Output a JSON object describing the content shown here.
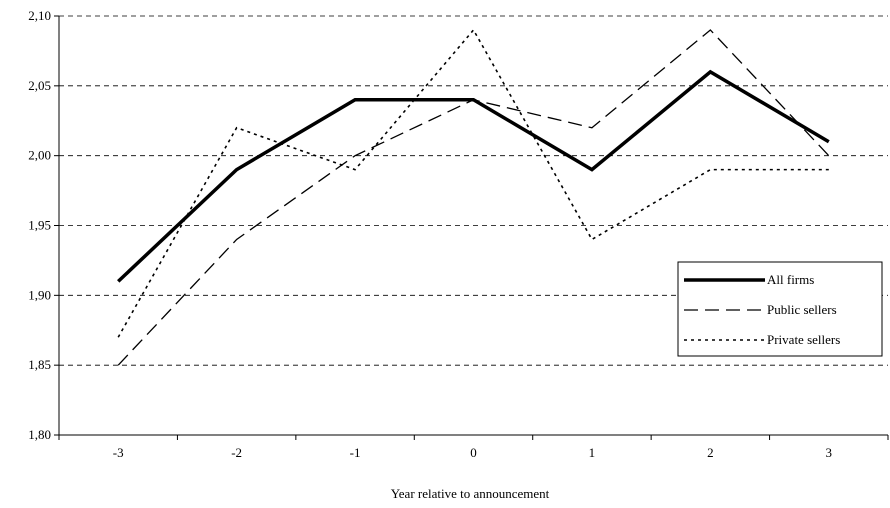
{
  "chart_data": {
    "type": "line",
    "title": "",
    "xlabel": "Year relative to announcement",
    "ylabel": "",
    "categories": [
      "-3",
      "-2",
      "-1",
      "0",
      "1",
      "2",
      "3"
    ],
    "ylim": [
      1.8,
      2.1
    ],
    "y_ticks": [
      "1,80",
      "1,85",
      "1,90",
      "1,95",
      "2,00",
      "2,05",
      "2,10"
    ],
    "grid": "horizontal dashed",
    "legend_position": "right",
    "series": [
      {
        "name": "All firms",
        "style": "solid-thick",
        "color": "#000000",
        "values": [
          1.91,
          1.99,
          2.04,
          2.04,
          1.99,
          2.06,
          2.01
        ]
      },
      {
        "name": "Public sellers",
        "style": "long-dash",
        "color": "#000000",
        "values": [
          1.85,
          1.94,
          2.0,
          2.04,
          2.02,
          2.09,
          2.0
        ]
      },
      {
        "name": "Private sellers",
        "style": "dotted",
        "color": "#000000",
        "values": [
          1.87,
          2.02,
          1.99,
          2.09,
          1.94,
          1.99,
          1.99
        ]
      }
    ]
  }
}
